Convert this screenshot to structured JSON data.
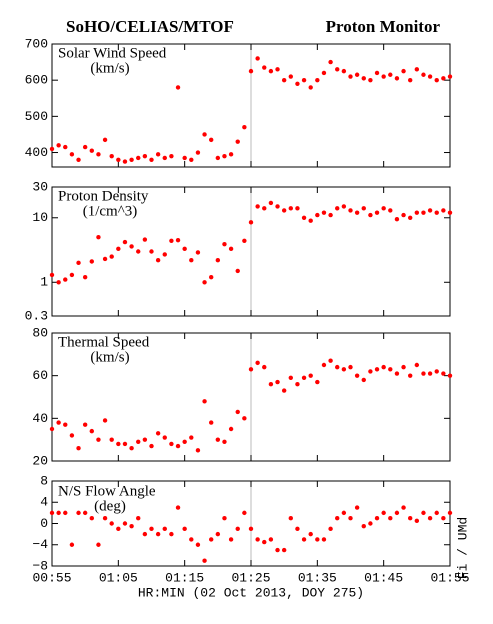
{
  "header": {
    "title_left": "SoHO/CELIAS/MTOF",
    "title_right": "Proton Monitor",
    "credit": "Fi / UMd"
  },
  "chart_data": [
    {
      "type": "scatter",
      "title": "Solar Wind Speed",
      "unit": "(km/s)",
      "color": "#ff0000",
      "log": false,
      "xlim": [
        55,
        115
      ],
      "ylim": [
        360,
        700
      ],
      "yticks": [
        400,
        500,
        600,
        700
      ],
      "marker_x": 85,
      "x": [
        55,
        56,
        57,
        58,
        59,
        60,
        61,
        62,
        63,
        64,
        65,
        66,
        67,
        68,
        69,
        70,
        71,
        72,
        73,
        74,
        75,
        76,
        77,
        78,
        79,
        80,
        81,
        82,
        83,
        84,
        85,
        86,
        87,
        88,
        89,
        90,
        91,
        92,
        93,
        94,
        95,
        96,
        97,
        98,
        99,
        100,
        101,
        102,
        103,
        104,
        105,
        106,
        107,
        108,
        109,
        110,
        111,
        112,
        113,
        114,
        115
      ],
      "values": [
        410,
        420,
        415,
        395,
        380,
        415,
        405,
        395,
        435,
        390,
        380,
        375,
        380,
        385,
        390,
        380,
        395,
        385,
        390,
        580,
        385,
        380,
        400,
        450,
        435,
        385,
        390,
        395,
        430,
        470,
        625,
        660,
        635,
        625,
        630,
        600,
        610,
        590,
        600,
        580,
        600,
        620,
        650,
        630,
        625,
        610,
        615,
        605,
        600,
        620,
        610,
        615,
        605,
        625,
        600,
        630,
        615,
        610,
        600,
        605,
        610
      ]
    },
    {
      "type": "scatter",
      "title": "Proton Density",
      "unit": "(1/cm^3)",
      "color": "#ff0000",
      "log": true,
      "xlim": [
        55,
        115
      ],
      "ylim": [
        0.3,
        30
      ],
      "yticks": [
        0.3,
        1,
        10,
        30
      ],
      "marker_x": 85,
      "x": [
        55,
        56,
        57,
        58,
        59,
        60,
        61,
        62,
        63,
        64,
        65,
        66,
        67,
        68,
        69,
        70,
        71,
        72,
        73,
        74,
        75,
        76,
        77,
        78,
        79,
        80,
        81,
        82,
        83,
        84,
        85,
        86,
        87,
        88,
        89,
        90,
        91,
        92,
        93,
        94,
        95,
        96,
        97,
        98,
        99,
        100,
        101,
        102,
        103,
        104,
        105,
        106,
        107,
        108,
        109,
        110,
        111,
        112,
        113,
        114,
        115
      ],
      "values": [
        1.3,
        1.0,
        1.1,
        1.3,
        2.0,
        1.2,
        2.1,
        5.0,
        2.3,
        2.5,
        3.3,
        4.2,
        3.6,
        3.0,
        4.6,
        3.0,
        2.2,
        2.7,
        4.4,
        4.5,
        3.3,
        2.2,
        2.9,
        1.0,
        1.2,
        2.2,
        3.9,
        3.3,
        1.5,
        4.4,
        8.5,
        15,
        14,
        17,
        15,
        13,
        14,
        14,
        10,
        9,
        11,
        12,
        11,
        14,
        15,
        13,
        12,
        14,
        11,
        12,
        14,
        13,
        9.5,
        11,
        10,
        12,
        12,
        13,
        12,
        13,
        12
      ]
    },
    {
      "type": "scatter",
      "title": "Thermal Speed",
      "unit": "(km/s)",
      "color": "#ff0000",
      "log": false,
      "xlim": [
        55,
        115
      ],
      "ylim": [
        20,
        80
      ],
      "yticks": [
        20,
        40,
        60,
        80
      ],
      "marker_x": 85,
      "x": [
        55,
        56,
        57,
        58,
        59,
        60,
        61,
        62,
        63,
        64,
        65,
        66,
        67,
        68,
        69,
        70,
        71,
        72,
        73,
        74,
        75,
        76,
        77,
        78,
        79,
        80,
        81,
        82,
        83,
        84,
        85,
        86,
        87,
        88,
        89,
        90,
        91,
        92,
        93,
        94,
        95,
        96,
        97,
        98,
        99,
        100,
        101,
        102,
        103,
        104,
        105,
        106,
        107,
        108,
        109,
        110,
        111,
        112,
        113,
        114,
        115
      ],
      "values": [
        35,
        38,
        37,
        32,
        26,
        37,
        34,
        30,
        39,
        30,
        28,
        28,
        26,
        29,
        30,
        27,
        33,
        31,
        28,
        27,
        29,
        31,
        25,
        48,
        38,
        30,
        29,
        35,
        43,
        40,
        63,
        66,
        64,
        56,
        57,
        53,
        59,
        56,
        59,
        60,
        57,
        65,
        67,
        64,
        63,
        64,
        60,
        58,
        62,
        63,
        64,
        63,
        61,
        64,
        60,
        65,
        61,
        61,
        62,
        61,
        60
      ]
    },
    {
      "type": "scatter",
      "title": "N/S Flow Angle",
      "unit": "(deg)",
      "color": "#ff0000",
      "log": false,
      "xlim": [
        55,
        115
      ],
      "ylim": [
        -8,
        8
      ],
      "yticks": [
        8,
        4,
        0,
        {
          "value": -4,
          "label": "−4"
        },
        {
          "value": -8,
          "label": "−8"
        }
      ],
      "marker_x": 85,
      "x": [
        55,
        56,
        57,
        58,
        59,
        60,
        61,
        62,
        63,
        64,
        65,
        66,
        67,
        68,
        69,
        70,
        71,
        72,
        73,
        74,
        75,
        76,
        77,
        78,
        79,
        80,
        81,
        82,
        83,
        84,
        85,
        86,
        87,
        88,
        89,
        90,
        91,
        92,
        93,
        94,
        95,
        96,
        97,
        98,
        99,
        100,
        101,
        102,
        103,
        104,
        105,
        106,
        107,
        108,
        109,
        110,
        111,
        112,
        113,
        114,
        115
      ],
      "values": [
        2,
        2,
        2,
        -4,
        2,
        2,
        1,
        -4,
        1,
        0,
        -1,
        0,
        -0.5,
        1,
        -2,
        -1,
        -2,
        -1,
        -2,
        3,
        -1,
        -3,
        -4,
        -7,
        -3,
        -2,
        1,
        -3,
        -1,
        2,
        -1,
        -3,
        -3.5,
        -3,
        -5,
        -5,
        1,
        -1,
        -3,
        -2,
        -3,
        -3,
        -1,
        1,
        2,
        1,
        3,
        -0.5,
        0,
        1,
        2,
        1,
        2,
        3,
        1,
        0.5,
        2,
        1,
        2,
        1,
        2
      ],
      "x_label": "HR:MIN (02 Oct 2013, DOY 275)",
      "xticks": [
        {
          "value": 55,
          "label": "00:55"
        },
        {
          "value": 65,
          "label": "01:05"
        },
        {
          "value": 75,
          "label": "01:15"
        },
        {
          "value": 85,
          "label": "01:25"
        },
        {
          "value": 95,
          "label": "01:35"
        },
        {
          "value": 105,
          "label": "01:45"
        },
        {
          "value": 115,
          "label": "01:55"
        }
      ]
    }
  ]
}
